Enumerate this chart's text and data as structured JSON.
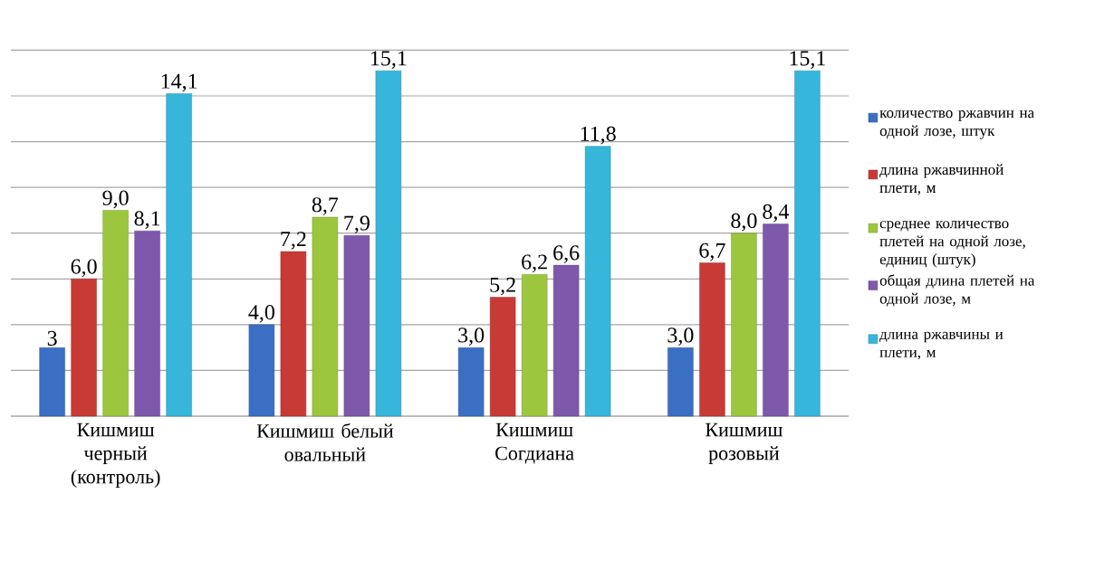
{
  "chart_data": {
    "type": "bar",
    "categories": [
      "Кишмиш черный (контроль)",
      "Кишмиш белый овальный",
      "Кишмиш Согдиана",
      "Кишмиш розовый"
    ],
    "series": [
      {
        "name": "количество ржавчин на одной лозе, штук",
        "color": "#3a6fc4",
        "values": [
          3,
          4.0,
          3.0,
          3.0
        ],
        "value_labels": [
          "3",
          "4,0",
          "3,0",
          "3,0"
        ]
      },
      {
        "name": "длина ржавчинной плети, м",
        "color": "#c83a36",
        "values": [
          6.0,
          7.2,
          5.2,
          6.7
        ],
        "value_labels": [
          "6,0",
          "7,2",
          "5,2",
          "6,7"
        ]
      },
      {
        "name": "среднее количество плетей на одной лозе, единиц (штук)",
        "color": "#9cc63e",
        "values": [
          9.0,
          8.7,
          6.2,
          8.0
        ],
        "value_labels": [
          "9,0",
          "8,7",
          "6,2",
          "8,0"
        ]
      },
      {
        "name": "общая длина плетей на одной лозе, м",
        "color": "#7e58ab",
        "values": [
          8.1,
          7.9,
          6.6,
          8.4
        ],
        "value_labels": [
          "8,1",
          "7,9",
          "6,6",
          "8,4"
        ]
      },
      {
        "name": "длина ржавчины и плети, м",
        "color": "#35b6da",
        "values": [
          14.1,
          15.1,
          11.8,
          15.1
        ],
        "value_labels": [
          "14,1",
          "15,1",
          "11,8",
          "15,1"
        ]
      }
    ],
    "grid": "y",
    "legend": "right",
    "tick_labels": "x"
  }
}
